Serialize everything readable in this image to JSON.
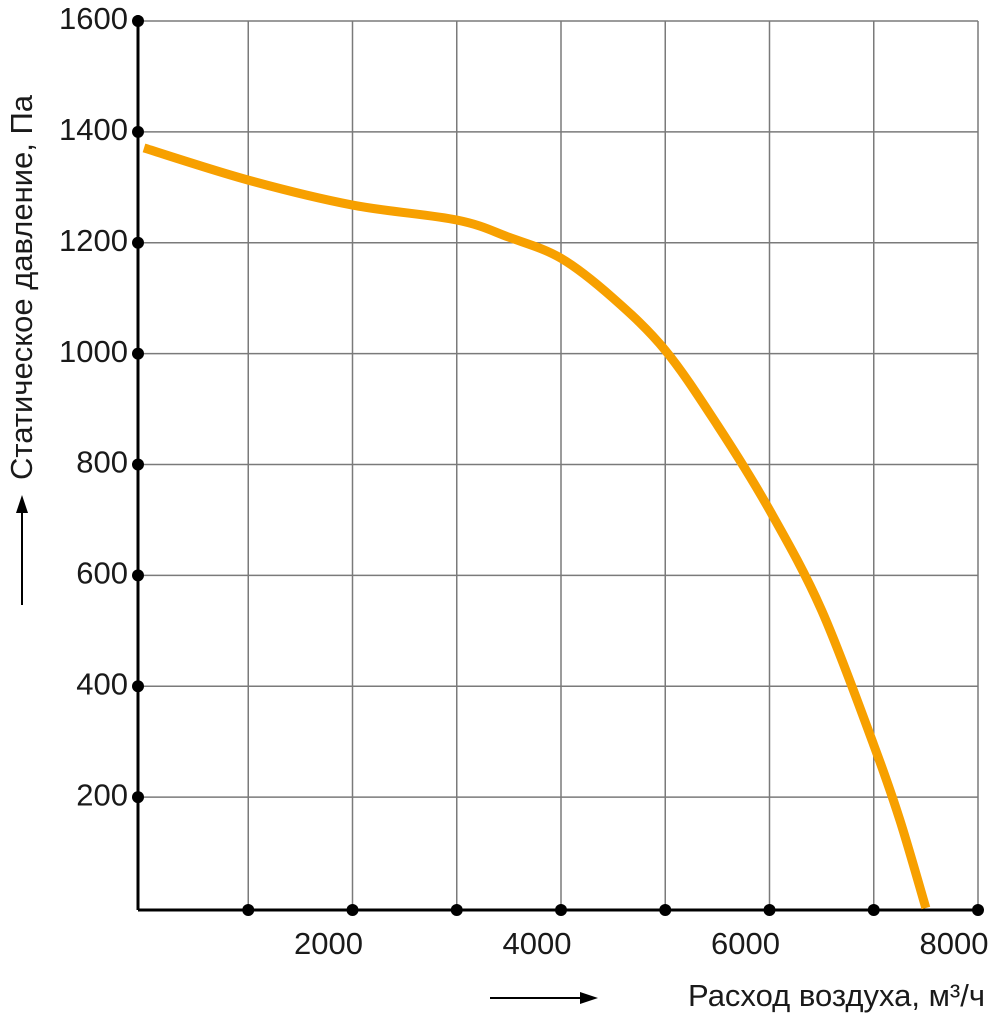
{
  "chart_data": {
    "type": "line",
    "x_label": "Расход воздуха, м³/ч",
    "y_label": "Статическое давление, Па",
    "x": [
      0,
      1000,
      2000,
      3000,
      3500,
      4000,
      4500,
      5000,
      5500,
      6000,
      6500,
      7000,
      7250,
      7500
    ],
    "series": [
      {
        "color": "#f7a000",
        "values": [
          1371,
          1313,
          1268,
          1241,
          1210,
          1172,
          1100,
          1006,
          871,
          718,
          537,
          294,
          159,
          0
        ]
      }
    ],
    "xlim": [
      0,
      8000
    ],
    "xticks": [
      2000,
      4000,
      6000,
      8000
    ],
    "x_minor_ticks": [
      1000,
      3000,
      5000,
      7000
    ],
    "ylim": [
      0,
      1600
    ],
    "yticks": [
      200,
      400,
      600,
      800,
      1000,
      1200,
      1400,
      1600
    ],
    "grid": true
  }
}
